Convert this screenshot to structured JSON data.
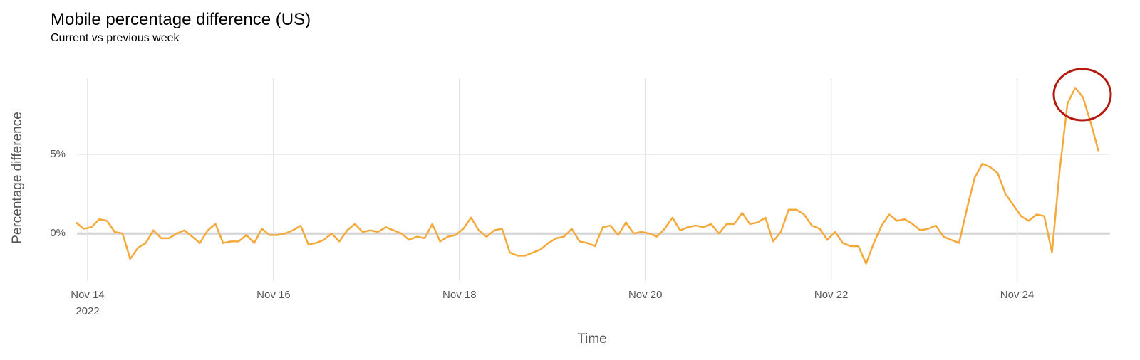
{
  "chart_data": {
    "type": "line",
    "title": "Mobile percentage difference (US)",
    "subtitle": "Current vs previous week",
    "x_label": "Time",
    "y_label": "Percentage difference",
    "xtick_sublabel": "2022",
    "grid": true,
    "xlim": [
      13.885,
      25
    ],
    "ylim": [
      -3,
      9.8
    ],
    "xticks": [
      {
        "value": 14,
        "label": "Nov 14"
      },
      {
        "value": 16,
        "label": "Nov 16"
      },
      {
        "value": 18,
        "label": "Nov 18"
      },
      {
        "value": 20,
        "label": "Nov 20"
      },
      {
        "value": 22,
        "label": "Nov 22"
      },
      {
        "value": 24,
        "label": "Nov 24"
      }
    ],
    "yticks": [
      {
        "value": 0,
        "label": "0%"
      },
      {
        "value": 5,
        "label": "5%"
      }
    ],
    "x": [
      13.875,
      13.958,
      14.042,
      14.125,
      14.208,
      14.292,
      14.375,
      14.458,
      14.542,
      14.625,
      14.708,
      14.792,
      14.875,
      14.958,
      15.042,
      15.125,
      15.208,
      15.292,
      15.375,
      15.458,
      15.542,
      15.625,
      15.708,
      15.792,
      15.875,
      15.958,
      16.042,
      16.125,
      16.208,
      16.292,
      16.375,
      16.458,
      16.542,
      16.625,
      16.708,
      16.792,
      16.875,
      16.958,
      17.042,
      17.125,
      17.208,
      17.292,
      17.375,
      17.458,
      17.542,
      17.625,
      17.708,
      17.792,
      17.875,
      17.958,
      18.042,
      18.125,
      18.208,
      18.292,
      18.375,
      18.458,
      18.542,
      18.625,
      18.708,
      18.792,
      18.875,
      18.958,
      19.042,
      19.125,
      19.208,
      19.292,
      19.375,
      19.458,
      19.542,
      19.625,
      19.708,
      19.792,
      19.875,
      19.958,
      20.042,
      20.125,
      20.208,
      20.292,
      20.375,
      20.458,
      20.542,
      20.625,
      20.708,
      20.792,
      20.875,
      20.958,
      21.042,
      21.125,
      21.208,
      21.292,
      21.375,
      21.458,
      21.542,
      21.625,
      21.708,
      21.792,
      21.875,
      21.958,
      22.042,
      22.125,
      22.208,
      22.292,
      22.375,
      22.458,
      22.542,
      22.625,
      22.708,
      22.792,
      22.875,
      22.958,
      23.042,
      23.125,
      23.208,
      23.292,
      23.375,
      23.458,
      23.542,
      23.625,
      23.708,
      23.792,
      23.875,
      23.958,
      24.042,
      24.125,
      24.208,
      24.292,
      24.375,
      24.458,
      24.542,
      24.625,
      24.708,
      24.792,
      24.875
    ],
    "series": [
      {
        "name": "Mobile",
        "color": "#f5a93b",
        "values": [
          0.7,
          0.3,
          0.4,
          0.9,
          0.8,
          0.1,
          0.0,
          -1.6,
          -0.9,
          -0.6,
          0.2,
          -0.3,
          -0.3,
          0.0,
          0.2,
          -0.2,
          -0.6,
          0.2,
          0.6,
          -0.6,
          -0.5,
          -0.5,
          -0.1,
          -0.6,
          0.3,
          -0.1,
          -0.1,
          0.0,
          0.2,
          0.5,
          -0.7,
          -0.6,
          -0.4,
          0.0,
          -0.5,
          0.2,
          0.6,
          0.1,
          0.2,
          0.1,
          0.4,
          0.2,
          0.0,
          -0.4,
          -0.2,
          -0.3,
          0.6,
          -0.5,
          -0.2,
          -0.1,
          0.3,
          1.0,
          0.2,
          -0.2,
          0.2,
          0.3,
          -1.2,
          -1.4,
          -1.4,
          -1.2,
          -1.0,
          -0.6,
          -0.3,
          -0.2,
          0.3,
          -0.5,
          -0.6,
          -0.8,
          0.4,
          0.5,
          -0.1,
          0.7,
          0.0,
          0.1,
          0.0,
          -0.2,
          0.3,
          1.0,
          0.2,
          0.4,
          0.5,
          0.4,
          0.6,
          0.0,
          0.6,
          0.6,
          1.3,
          0.6,
          0.7,
          1.0,
          -0.5,
          0.1,
          1.5,
          1.5,
          1.2,
          0.5,
          0.3,
          -0.4,
          0.1,
          -0.6,
          -0.8,
          -0.8,
          -1.9,
          -0.6,
          0.5,
          1.2,
          0.8,
          0.9,
          0.6,
          0.2,
          0.3,
          0.5,
          -0.2,
          -0.4,
          -0.6,
          1.5,
          3.5,
          4.4,
          4.2,
          3.8,
          2.5,
          1.8,
          1.1,
          0.8,
          1.2,
          1.1,
          -1.2,
          4.0,
          8.2,
          9.2,
          8.6,
          7.0,
          5.2
        ]
      }
    ]
  }
}
